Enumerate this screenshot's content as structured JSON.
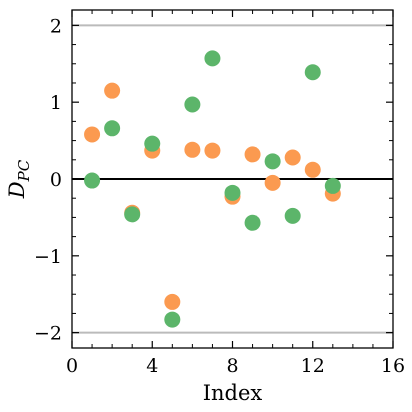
{
  "chart_data": {
    "type": "scatter",
    "xlabel": "Index",
    "ylabel_main": "D",
    "ylabel_sub": "PC",
    "xlim": [
      0,
      16
    ],
    "ylim": [
      -2.2,
      2.2
    ],
    "x_ticks": [
      0,
      4,
      8,
      12,
      16
    ],
    "x_tick_labels": [
      "0",
      "4",
      "8",
      "12",
      "16"
    ],
    "y_ticks": [
      -2,
      -1,
      0,
      1,
      2
    ],
    "y_tick_labels": [
      "−2",
      "−1",
      "0",
      "1",
      "2"
    ],
    "reference_lines": [
      {
        "y": 2,
        "color": "#bbbbbb"
      },
      {
        "y": -2,
        "color": "#bbbbbb"
      },
      {
        "y": 0,
        "color": "#000000"
      }
    ],
    "series": [
      {
        "color": "#fb9a50",
        "points": [
          {
            "x": 1,
            "y": 0.58
          },
          {
            "x": 2,
            "y": 1.15
          },
          {
            "x": 3,
            "y": -0.44
          },
          {
            "x": 4,
            "y": 0.37
          },
          {
            "x": 5,
            "y": -1.6
          },
          {
            "x": 6,
            "y": 0.38
          },
          {
            "x": 7,
            "y": 0.37
          },
          {
            "x": 8,
            "y": -0.23
          },
          {
            "x": 9,
            "y": 0.32
          },
          {
            "x": 10,
            "y": -0.05
          },
          {
            "x": 11,
            "y": 0.28
          },
          {
            "x": 12,
            "y": 0.12
          },
          {
            "x": 13,
            "y": -0.19
          }
        ]
      },
      {
        "color": "#5cb56a",
        "points": [
          {
            "x": 1,
            "y": -0.02
          },
          {
            "x": 2,
            "y": 0.66
          },
          {
            "x": 3,
            "y": -0.46
          },
          {
            "x": 4,
            "y": 0.46
          },
          {
            "x": 5,
            "y": -1.83
          },
          {
            "x": 6,
            "y": 0.97
          },
          {
            "x": 7,
            "y": 1.57
          },
          {
            "x": 8,
            "y": -0.18
          },
          {
            "x": 9,
            "y": -0.57
          },
          {
            "x": 10,
            "y": 0.23
          },
          {
            "x": 11,
            "y": -0.48
          },
          {
            "x": 12,
            "y": 1.39
          },
          {
            "x": 13,
            "y": -0.09
          }
        ]
      }
    ]
  }
}
